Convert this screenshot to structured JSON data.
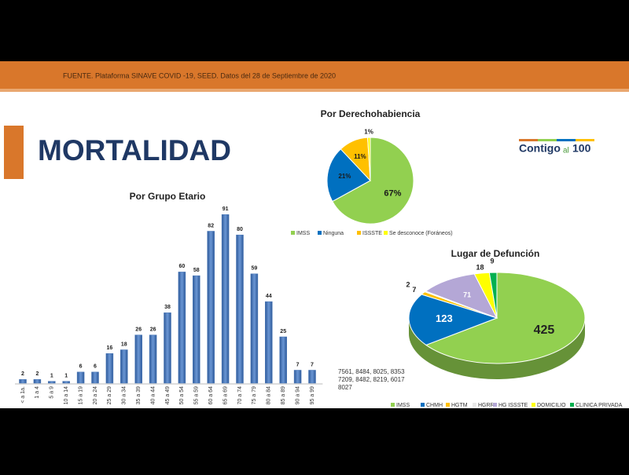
{
  "header": {
    "source": "FUENTE. Plataforma SINAVE COVID -19, SEED. Datos del 28 de Septiembre de 2020"
  },
  "title": "MORTALIDAD",
  "logo": {
    "word": "Contigo",
    "small": "al",
    "number": "100"
  },
  "note": {
    "lines": [
      "7561, 8484, 8025, 8353",
      "7209, 8482, 8219, 6017",
      "8027"
    ]
  },
  "chart_data": [
    {
      "type": "bar",
      "title": "Por Grupo Etario",
      "color": "#4a78b8",
      "categories": [
        "< a 1a.",
        "1 a 4",
        "5 a 9",
        "10 a 14",
        "15 a 19",
        "20 a 24",
        "25 a 29",
        "30 a 34",
        "35 a 39",
        "40 a 44",
        "45 a 49",
        "50 a 54",
        "55 a 59",
        "60 a 64",
        "65 a 69",
        "70 a 74",
        "75 a 79",
        "80 a 84",
        "85 a 89",
        "90 a 94",
        "95 a 99"
      ],
      "values": [
        2,
        2,
        1,
        1,
        6,
        6,
        16,
        18,
        26,
        26,
        38,
        60,
        58,
        82,
        91,
        80,
        59,
        44,
        25,
        7,
        7
      ]
    },
    {
      "type": "pie",
      "title": "Por Derechohabiencia",
      "categories": [
        "IMSS",
        "Ninguna",
        "ISSSTE",
        "Se desconoce (Foráneos)"
      ],
      "values": [
        67,
        21,
        11,
        1
      ],
      "value_labels": [
        "67%",
        "21%",
        "11%",
        "1%"
      ],
      "colors": [
        "#92d050",
        "#0070c0",
        "#ffc000",
        "#ffff00"
      ]
    },
    {
      "type": "pie",
      "title": "Lugar de Defunción",
      "3d": true,
      "categories": [
        "IMSS",
        "CHMH",
        "HGTM",
        "HGRR",
        "HG ISSSTE",
        "DOMICILIO",
        "CLINICA PRIVADA"
      ],
      "values": [
        425,
        123,
        7,
        2,
        71,
        18,
        9
      ],
      "colors": [
        "#92d050",
        "#0070c0",
        "#ffc000",
        "#e8e8e8",
        "#b4a7d6",
        "#ffff00",
        "#00b050"
      ]
    }
  ]
}
